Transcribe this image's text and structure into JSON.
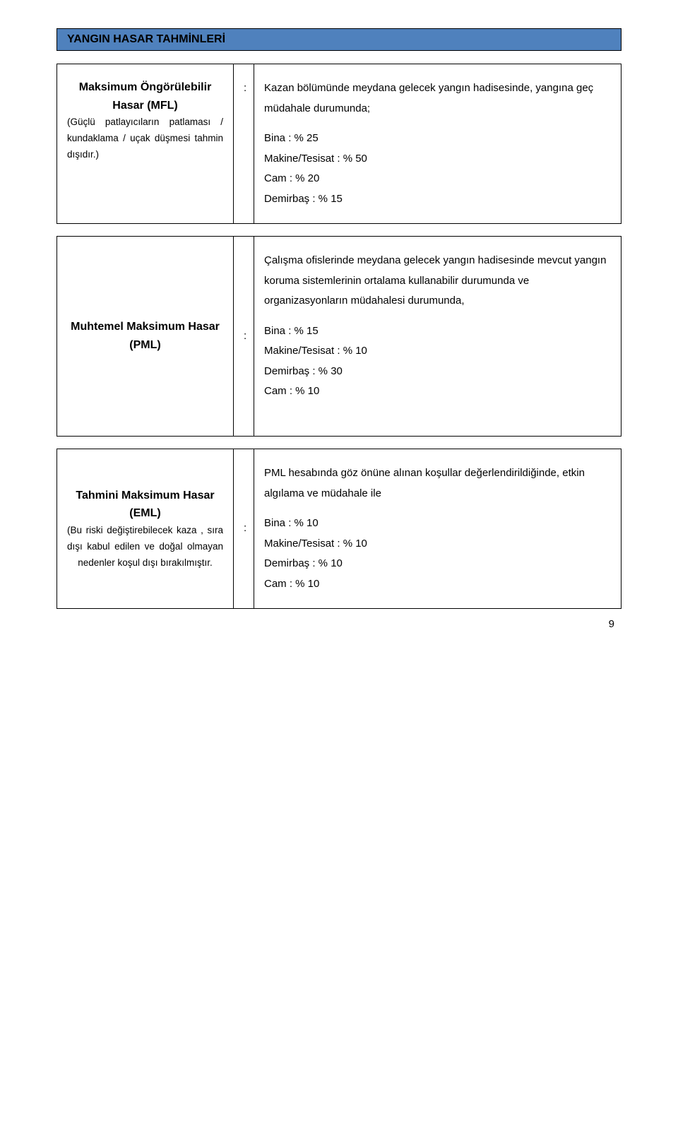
{
  "header": {
    "title": "YANGIN HASAR TAHMİNLERİ",
    "bg_color": "#4f81bd"
  },
  "rows": [
    {
      "label_main": "Maksimum Öngörülebilir Hasar (MFL)",
      "label_sub": "(Güçlü patlayıcıların patlaması / kundaklama / uçak düşmesi tahmin dışıdır.)",
      "colon": ":",
      "intro": "Kazan bölümünde meydana gelecek yangın hadisesinde, yangına geç müdahale durumunda;",
      "lines": [
        "Bina : % 25",
        "Makine/Tesisat : % 50",
        "Cam : % 20",
        "Demirbaş : % 15"
      ]
    },
    {
      "label_main": "Muhtemel Maksimum Hasar (PML)",
      "label_sub": "",
      "colon": ":",
      "intro": "Çalışma ofislerinde meydana gelecek yangın hadisesinde mevcut yangın koruma sistemlerinin ortalama kullanabilir durumunda ve organizasyonların müdahalesi durumunda,",
      "lines": [
        "Bina : % 15",
        "Makine/Tesisat : % 10",
        "Demirbaş : % 30",
        "Cam : % 10"
      ]
    },
    {
      "label_main": "Tahmini Maksimum Hasar (EML)",
      "label_sub": "(Bu riski değiştirebilecek kaza , sıra dışı kabul edilen ve doğal olmayan nedenler koşul dışı bırakılmıştır.",
      "colon": ":",
      "intro": "PML hesabında göz önüne alınan koşullar değerlendirildiğinde, etkin algılama ve müdahale ile",
      "lines": [
        "Bina : % 10",
        "Makine/Tesisat : % 10",
        "Demirbaş : % 10",
        "Cam : % 10"
      ]
    }
  ],
  "page_number": "9"
}
